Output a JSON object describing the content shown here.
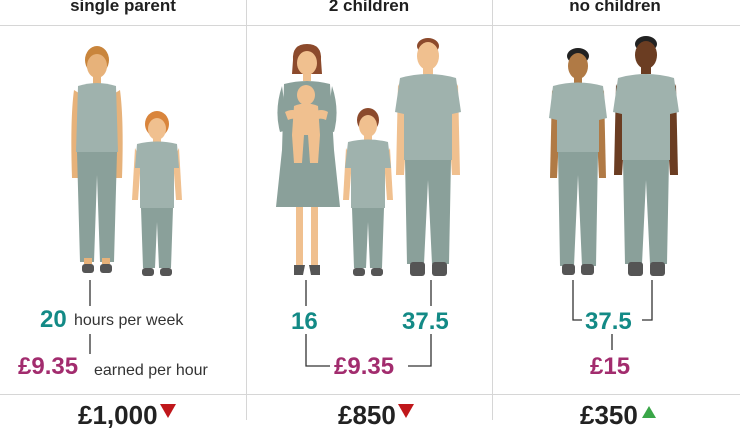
{
  "columns": [
    {
      "title": "single parent",
      "hours": "20",
      "hours_caption": "hours per week",
      "wage": "£9.35",
      "wage_caption": "earned per hour",
      "change": "£1,000",
      "direction": "down"
    },
    {
      "title": "2 children",
      "hours_a": "16",
      "hours_b": "37.5",
      "wage": "£9.35",
      "change": "£850",
      "direction": "down"
    },
    {
      "title": "no children",
      "hours": "37.5",
      "wage": "£15",
      "change": "£350",
      "direction": "up"
    }
  ],
  "colors": {
    "teal": "#138a86",
    "purple": "#a22c6e",
    "down_arrow": "#c0171b",
    "up_arrow": "#3aa648",
    "clothing": "#9fb2ad",
    "clothing_dark": "#8aa09a"
  },
  "icons": [
    "adult-woman-figure",
    "child-figure",
    "woman-holding-baby-figure",
    "adult-man-figure",
    "man-figure"
  ]
}
